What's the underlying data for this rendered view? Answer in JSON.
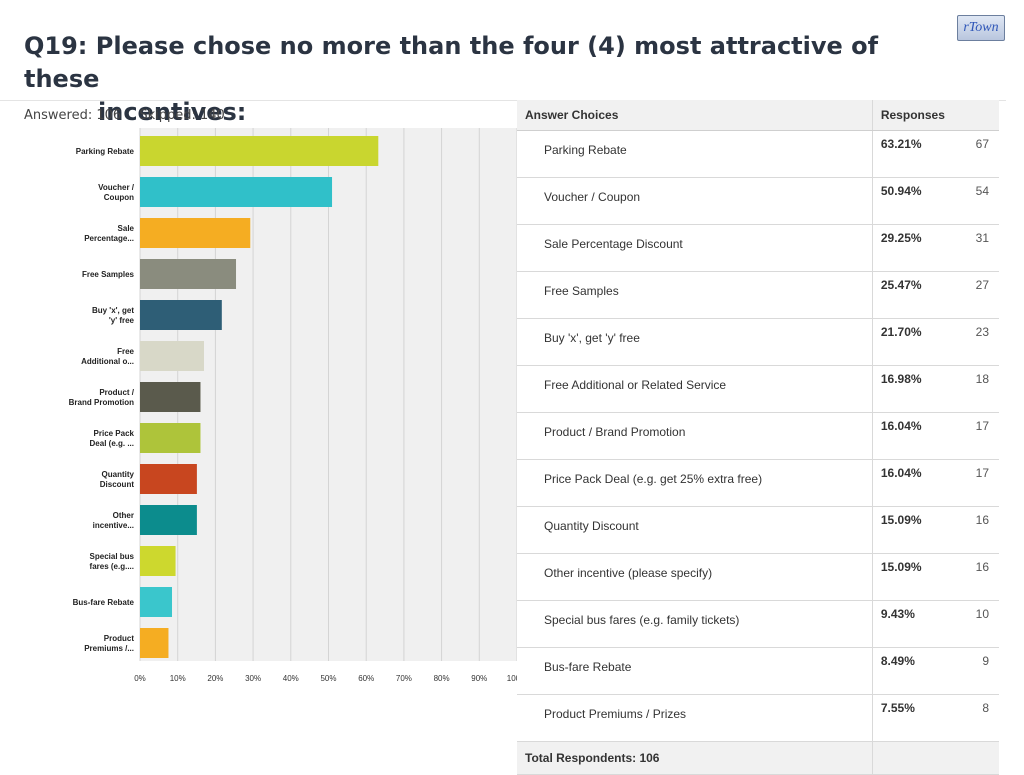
{
  "header": {
    "title_line1": "Q19: Please chose no more than the four (4) most attractive of these",
    "title_line2": "incentives:",
    "logo_text": "rTown",
    "answered": "Answered: 106",
    "skipped": "Skipped: 140"
  },
  "chart_data": {
    "type": "bar",
    "orientation": "horizontal",
    "categories": [
      "Parking Rebate",
      "Voucher / Coupon",
      "Sale Percentage...",
      "Free Samples",
      "Buy 'x', get 'y' free",
      "Free Additional o...",
      "Product / Brand Promotion",
      "Price Pack Deal (e.g. ...",
      "Quantity Discount",
      "Other incentive...",
      "Special bus fares (e.g....",
      "Bus-fare Rebate",
      "Product Premiums /..."
    ],
    "category_lines": [
      [
        "Parking Rebate"
      ],
      [
        "Voucher /",
        "Coupon"
      ],
      [
        "Sale",
        "Percentage..."
      ],
      [
        "Free Samples"
      ],
      [
        "Buy 'x', get",
        "'y' free"
      ],
      [
        "Free",
        "Additional o..."
      ],
      [
        "Product /",
        "Brand Promotion"
      ],
      [
        "Price Pack",
        "Deal (e.g. ..."
      ],
      [
        "Quantity",
        "Discount"
      ],
      [
        "Other",
        "incentive..."
      ],
      [
        "Special bus",
        "fares (e.g...."
      ],
      [
        "Bus-fare Rebate"
      ],
      [
        "Product",
        "Premiums /..."
      ]
    ],
    "values": [
      63.21,
      50.94,
      29.25,
      25.47,
      21.7,
      16.98,
      16.04,
      16.04,
      15.09,
      15.09,
      9.43,
      8.49,
      7.55
    ],
    "colors": [
      "#c9d62f",
      "#30c0c9",
      "#f5ad22",
      "#8a8c7e",
      "#2e5e76",
      "#d8d8c8",
      "#5a5a4c",
      "#aec43a",
      "#c8461f",
      "#0c8c8d",
      "#cdd82e",
      "#3ac6cc",
      "#f5ad22"
    ],
    "xlim": [
      0,
      100
    ],
    "xticks": [
      "0%",
      "10%",
      "20%",
      "30%",
      "40%",
      "50%",
      "60%",
      "70%",
      "80%",
      "90%",
      "100%"
    ],
    "grid": true
  },
  "table": {
    "headers": {
      "choices": "Answer Choices",
      "responses": "Responses"
    },
    "rows": [
      {
        "choice": "Parking Rebate",
        "percent": "63.21%",
        "count": "67"
      },
      {
        "choice": "Voucher / Coupon",
        "percent": "50.94%",
        "count": "54"
      },
      {
        "choice": "Sale Percentage Discount",
        "percent": "29.25%",
        "count": "31"
      },
      {
        "choice": "Free Samples",
        "percent": "25.47%",
        "count": "27"
      },
      {
        "choice": "Buy 'x', get 'y' free",
        "percent": "21.70%",
        "count": "23"
      },
      {
        "choice": "Free Additional or Related Service",
        "percent": "16.98%",
        "count": "18"
      },
      {
        "choice": "Product / Brand Promotion",
        "percent": "16.04%",
        "count": "17"
      },
      {
        "choice": "Price Pack Deal (e.g. get 25% extra free)",
        "percent": "16.04%",
        "count": "17"
      },
      {
        "choice": "Quantity Discount",
        "percent": "15.09%",
        "count": "16"
      },
      {
        "choice": "Other incentive (please specify)",
        "percent": "15.09%",
        "count": "16"
      },
      {
        "choice": "Special bus fares (e.g. family tickets)",
        "percent": "9.43%",
        "count": "10"
      },
      {
        "choice": "Bus-fare Rebate",
        "percent": "8.49%",
        "count": "9"
      },
      {
        "choice": "Product Premiums / Prizes",
        "percent": "7.55%",
        "count": "8"
      }
    ],
    "total_label": "Total Respondents: 106"
  }
}
